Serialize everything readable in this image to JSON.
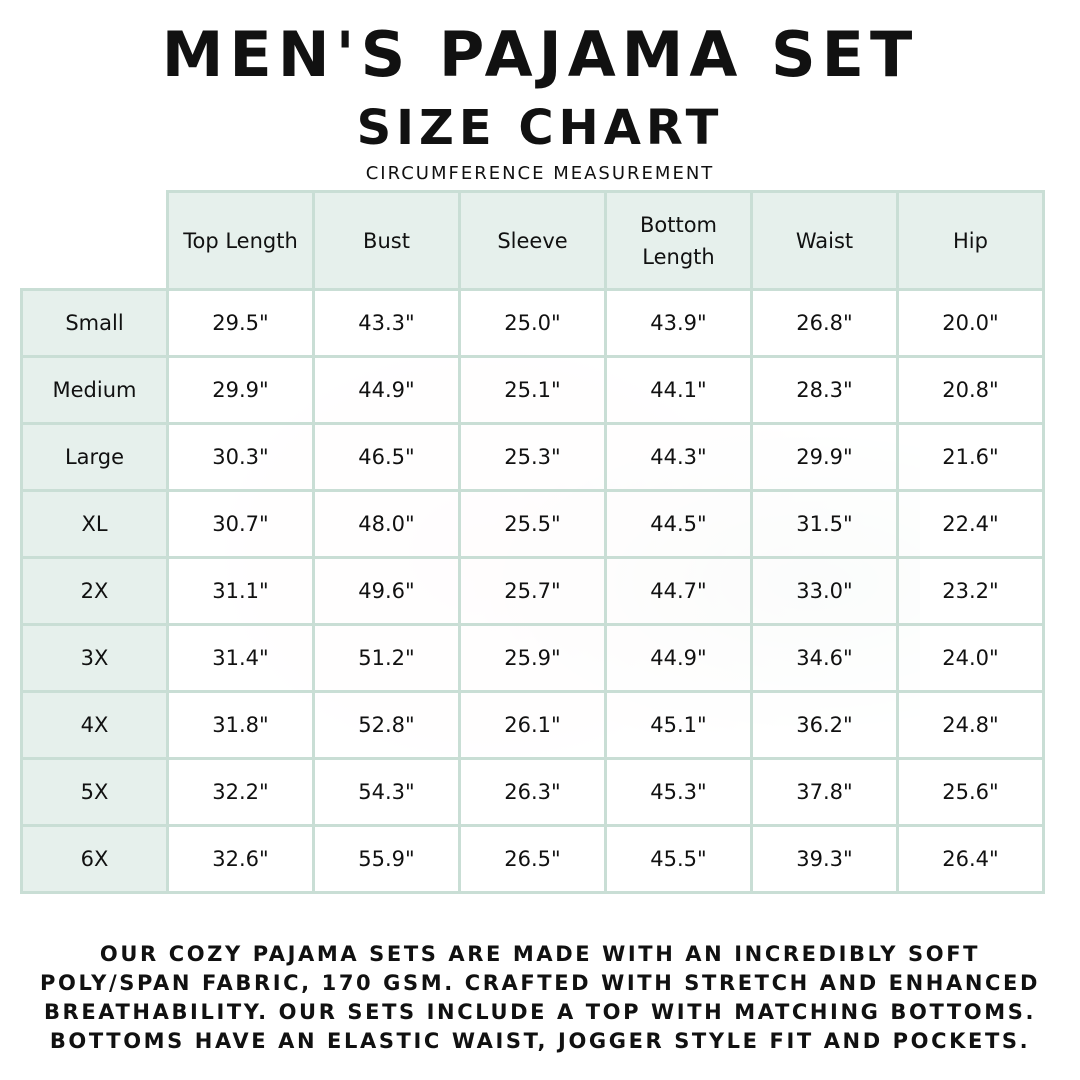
{
  "title": "MEN'S PAJAMA SET",
  "subtitle": "SIZE CHART",
  "caption": "CIRCUMFERENCE MEASUREMENT",
  "headers": [
    "Top Length",
    "Bust",
    "Sleeve",
    "Bottom Length",
    "Waist",
    "Hip"
  ],
  "rows": [
    {
      "size": "Small",
      "values": [
        "29.5\"",
        "43.3\"",
        "25.0\"",
        "43.9\"",
        "26.8\"",
        "20.0\""
      ]
    },
    {
      "size": "Medium",
      "values": [
        "29.9\"",
        "44.9\"",
        "25.1\"",
        "44.1\"",
        "28.3\"",
        "20.8\""
      ]
    },
    {
      "size": "Large",
      "values": [
        "30.3\"",
        "46.5\"",
        "25.3\"",
        "44.3\"",
        "29.9\"",
        "21.6\""
      ]
    },
    {
      "size": "XL",
      "values": [
        "30.7\"",
        "48.0\"",
        "25.5\"",
        "44.5\"",
        "31.5\"",
        "22.4\""
      ]
    },
    {
      "size": "2X",
      "values": [
        "31.1\"",
        "49.6\"",
        "25.7\"",
        "44.7\"",
        "33.0\"",
        "23.2\""
      ]
    },
    {
      "size": "3X",
      "values": [
        "31.4\"",
        "51.2\"",
        "25.9\"",
        "44.9\"",
        "34.6\"",
        "24.0\""
      ]
    },
    {
      "size": "4X",
      "values": [
        "31.8\"",
        "52.8\"",
        "26.1\"",
        "45.1\"",
        "36.2\"",
        "24.8\""
      ]
    },
    {
      "size": "5X",
      "values": [
        "32.2\"",
        "54.3\"",
        "26.3\"",
        "45.3\"",
        "37.8\"",
        "25.6\""
      ]
    },
    {
      "size": "6X",
      "values": [
        "32.6\"",
        "55.9\"",
        "26.5\"",
        "45.5\"",
        "39.3\"",
        "26.4\""
      ]
    }
  ],
  "footer": [
    "OUR COZY PAJAMA SETS ARE MADE WITH AN INCREDIBLY SOFT",
    "POLY/SPAN FABRIC, 170 GSM. CRAFTED WITH STRETCH AND ENHANCED",
    "BREATHABILITY. OUR SETS INCLUDE A TOP WITH MATCHING BOTTOMS.",
    "BOTTOMS HAVE AN ELASTIC WAIST, JOGGER STYLE FIT AND POCKETS."
  ],
  "colors": {
    "header_bg": "#e6f0ec",
    "border": "#c9ded5"
  }
}
